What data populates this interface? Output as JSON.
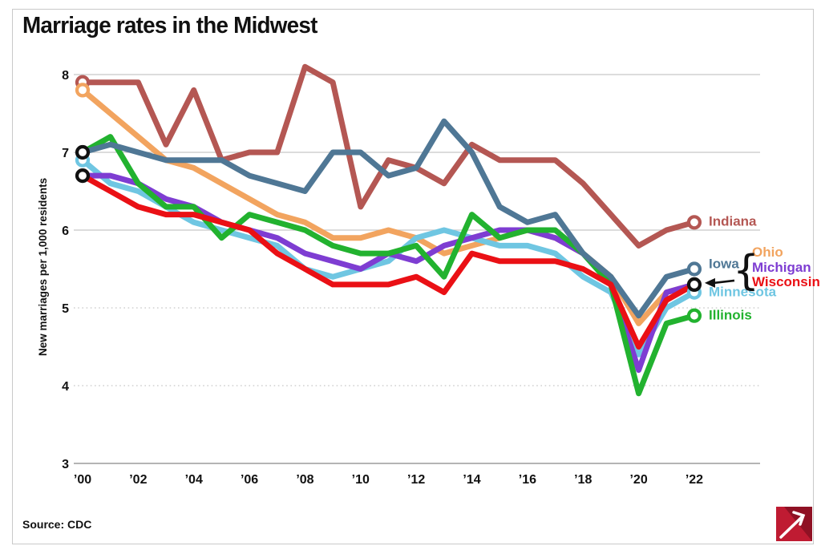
{
  "title": "Marriage rates in the Midwest",
  "source": "Source: CDC",
  "chart_data": {
    "type": "line",
    "title": "Marriage rates in the Midwest",
    "ylabel": "New marriages per 1,000 residents",
    "ylim": [
      3,
      8
    ],
    "yticks": [
      8,
      7,
      6,
      5,
      4,
      3
    ],
    "grid": {
      "solid_lines": [
        8,
        7,
        6
      ],
      "dotted_lines": [
        5,
        4
      ],
      "axis_line": 3
    },
    "x_ticks": [
      {
        "year": 2000,
        "label": "’00"
      },
      {
        "year": 2002,
        "label": "’02"
      },
      {
        "year": 2004,
        "label": "’04"
      },
      {
        "year": 2006,
        "label": "’06"
      },
      {
        "year": 2008,
        "label": "’08"
      },
      {
        "year": 2010,
        "label": "’10"
      },
      {
        "year": 2012,
        "label": "’12"
      },
      {
        "year": 2014,
        "label": "’14"
      },
      {
        "year": 2016,
        "label": "’16"
      },
      {
        "year": 2018,
        "label": "’18"
      },
      {
        "year": 2020,
        "label": "’20"
      },
      {
        "year": 2022,
        "label": "’22"
      }
    ],
    "years": [
      2000,
      2001,
      2002,
      2003,
      2004,
      2005,
      2006,
      2007,
      2008,
      2009,
      2010,
      2011,
      2012,
      2013,
      2014,
      2015,
      2016,
      2017,
      2018,
      2019,
      2020,
      2021,
      2022
    ],
    "series": [
      {
        "name": "Indiana",
        "color": "#b45753",
        "values": [
          7.9,
          7.9,
          7.9,
          7.1,
          7.8,
          6.9,
          7.0,
          7.0,
          8.1,
          7.9,
          6.3,
          6.9,
          6.8,
          6.6,
          7.1,
          6.9,
          6.9,
          6.9,
          6.6,
          6.2,
          5.8,
          6.0,
          6.1
        ]
      },
      {
        "name": "Iowa",
        "color": "#4f7795",
        "values": [
          7.0,
          7.1,
          7.0,
          6.9,
          6.9,
          6.9,
          6.7,
          6.6,
          6.5,
          7.0,
          7.0,
          6.7,
          6.8,
          7.4,
          7.0,
          6.3,
          6.1,
          6.2,
          5.7,
          5.4,
          4.9,
          5.4,
          5.5
        ]
      },
      {
        "name": "Ohio",
        "color": "#f2a45f",
        "values": [
          7.8,
          7.5,
          7.2,
          6.9,
          6.8,
          6.6,
          6.4,
          6.2,
          6.1,
          5.9,
          5.9,
          6.0,
          5.9,
          5.7,
          5.8,
          5.9,
          6.0,
          5.9,
          5.7,
          5.4,
          4.8,
          5.2,
          5.3
        ]
      },
      {
        "name": "Michigan",
        "color": "#7e3dd2",
        "values": [
          6.7,
          6.7,
          6.6,
          6.4,
          6.3,
          6.1,
          6.0,
          5.9,
          5.7,
          5.6,
          5.5,
          5.7,
          5.6,
          5.8,
          5.9,
          6.0,
          6.0,
          5.9,
          5.7,
          5.3,
          4.2,
          5.2,
          5.3
        ]
      },
      {
        "name": "Wisconsin",
        "color": "#ea1015",
        "values": [
          6.7,
          6.5,
          6.3,
          6.2,
          6.2,
          6.1,
          6.0,
          5.7,
          5.5,
          5.3,
          5.3,
          5.3,
          5.4,
          5.2,
          5.7,
          5.6,
          5.6,
          5.6,
          5.5,
          5.3,
          4.5,
          5.1,
          5.3
        ]
      },
      {
        "name": "Minnesota",
        "color": "#6fc6e2",
        "values": [
          6.9,
          6.6,
          6.5,
          6.3,
          6.1,
          6.0,
          5.9,
          5.8,
          5.5,
          5.4,
          5.5,
          5.6,
          5.9,
          6.0,
          5.9,
          5.8,
          5.8,
          5.7,
          5.4,
          5.2,
          4.4,
          5.0,
          5.2
        ]
      },
      {
        "name": "Illinois",
        "color": "#22b22f",
        "values": [
          7.0,
          7.2,
          6.6,
          6.3,
          6.3,
          5.9,
          6.2,
          6.1,
          6.0,
          5.8,
          5.7,
          5.7,
          5.8,
          5.4,
          6.2,
          5.9,
          6.0,
          6.0,
          5.7,
          5.3,
          3.9,
          4.8,
          4.9
        ]
      }
    ],
    "draw_order": [
      "Ohio",
      "Indiana",
      "Minnesota",
      "Michigan",
      "Illinois",
      "Iowa",
      "Wisconsin"
    ],
    "overlap_marker_color": "#111111",
    "start_markers": [
      {
        "year": 2000,
        "value": 7.9,
        "series": "Indiana"
      },
      {
        "year": 2000,
        "value": 7.8,
        "series": "Ohio"
      },
      {
        "year": 2000,
        "value": 6.9,
        "series": "Minnesota"
      },
      {
        "year": 2000,
        "value": 7.0,
        "series": "overlap",
        "overlap_of": [
          "Iowa",
          "Illinois"
        ]
      },
      {
        "year": 2000,
        "value": 6.7,
        "series": "overlap",
        "overlap_of": [
          "Michigan",
          "Wisconsin"
        ]
      }
    ],
    "end_markers": [
      {
        "year": 2022,
        "value": 6.1,
        "series": "Indiana"
      },
      {
        "year": 2022,
        "value": 5.5,
        "series": "Iowa"
      },
      {
        "year": 2022,
        "value": 5.2,
        "series": "Minnesota"
      },
      {
        "year": 2022,
        "value": 4.9,
        "series": "Illinois"
      },
      {
        "year": 2022,
        "value": 5.3,
        "series": "overlap",
        "overlap_of": [
          "Ohio",
          "Michigan",
          "Wisconsin"
        ]
      }
    ],
    "labels": [
      {
        "text": "Indiana",
        "series": "Indiana",
        "anchor_value": 6.12
      },
      {
        "text": "Iowa",
        "series": "Iowa",
        "anchor_value": 5.57
      },
      {
        "text": "Minnesota",
        "series": "Minnesota",
        "anchor_value": 5.21
      },
      {
        "text": "Illinois",
        "series": "Illinois",
        "anchor_value": 4.91
      }
    ],
    "group_label": {
      "entries": [
        {
          "text": "Ohio",
          "series": "Ohio"
        },
        {
          "text": "Michigan",
          "series": "Michigan"
        },
        {
          "text": "Wisconsin",
          "series": "Wisconsin"
        }
      ],
      "points_to_value": 5.3,
      "brace": "{"
    }
  },
  "logo": {
    "primary_color": "#bf1b32",
    "dark_color": "#8f1124",
    "arrow_color": "#ffffff"
  }
}
